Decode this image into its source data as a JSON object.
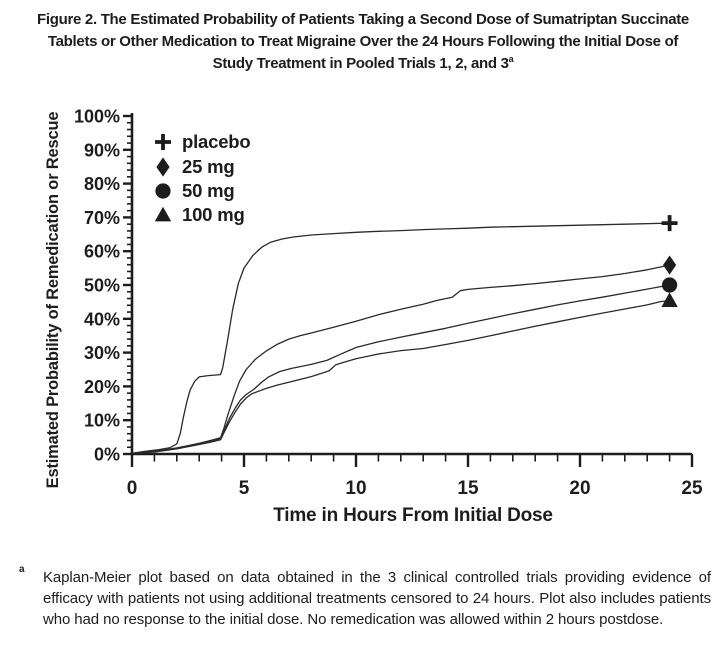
{
  "figure": {
    "title_line1": "Figure 2. The Estimated Probability of Patients Taking a Second Dose of Sumatriptan Succinate",
    "title_line2": "Tablets or Other Medication to Treat Migraine Over the 24 Hours Following the Initial Dose of",
    "title_line3": "Study Treatment in Pooled Trials 1, 2, and 3",
    "title_superscript": "a"
  },
  "footnote": {
    "marker": "a",
    "text": "Kaplan-Meier plot based on data obtained in the 3 clinical controlled trials providing evidence of efficacy with patients not using additional treatments censored to 24 hours. Plot also includes patients who had no response to the initial dose. No remedication was allowed within 2 hours postdose."
  },
  "colors": {
    "ink": "#1d1d1d",
    "background": "#ffffff",
    "curve": "#2a2a2a"
  },
  "chart_data": {
    "type": "line",
    "title": "",
    "xlabel": "Time in Hours From Initial Dose",
    "ylabel": "Estimated Probability of Remedication or Rescue",
    "xlim": [
      0,
      25
    ],
    "ylim": [
      0,
      100
    ],
    "grid": false,
    "legend_position": "upper-left-inside",
    "x_tick_values": [
      0,
      5,
      10,
      15,
      20,
      25
    ],
    "x_tick_labels": [
      "0",
      "5",
      "10",
      "15",
      "20",
      "25"
    ],
    "x_minor_tick_step": 1,
    "y_tick_values": [
      0,
      10,
      20,
      30,
      40,
      50,
      60,
      70,
      80,
      90,
      100
    ],
    "y_tick_labels": [
      "0%",
      "10%",
      "20%",
      "30%",
      "40%",
      "50%",
      "60%",
      "70%",
      "80%",
      "90%",
      "100%"
    ],
    "y_minor_tick_step": 2,
    "series": [
      {
        "id": "placebo",
        "name": "placebo",
        "marker": "plus",
        "end_time_hours": 24,
        "end_value_pct": 68,
        "points": [
          [
            0,
            0.2
          ],
          [
            0.6,
            0.8
          ],
          [
            1.2,
            1.3
          ],
          [
            1.7,
            1.9
          ],
          [
            2.0,
            3
          ],
          [
            2.15,
            6
          ],
          [
            2.3,
            11
          ],
          [
            2.45,
            15.5
          ],
          [
            2.6,
            19
          ],
          [
            2.8,
            21.5
          ],
          [
            3.0,
            22.8
          ],
          [
            3.4,
            23.2
          ],
          [
            3.95,
            23.5
          ],
          [
            4.05,
            25.5
          ],
          [
            4.25,
            33
          ],
          [
            4.5,
            43
          ],
          [
            4.75,
            50.5
          ],
          [
            5.0,
            55
          ],
          [
            5.4,
            58.8
          ],
          [
            5.8,
            61.2
          ],
          [
            6.2,
            62.7
          ],
          [
            6.7,
            63.6
          ],
          [
            7.2,
            64.2
          ],
          [
            8,
            64.8
          ],
          [
            9,
            65.2
          ],
          [
            10,
            65.6
          ],
          [
            11,
            65.9
          ],
          [
            12,
            66.1
          ],
          [
            13,
            66.4
          ],
          [
            14,
            66.6
          ],
          [
            15,
            66.8
          ],
          [
            16,
            67.1
          ],
          [
            18,
            67.4
          ],
          [
            20,
            67.7
          ],
          [
            22,
            68.0
          ],
          [
            24,
            68.3
          ]
        ]
      },
      {
        "id": "25mg",
        "name": "25 mg",
        "marker": "diamond",
        "end_time_hours": 24,
        "end_value_pct": 56,
        "points": [
          [
            0,
            0.2
          ],
          [
            1,
            0.8
          ],
          [
            2,
            1.8
          ],
          [
            2.5,
            2.5
          ],
          [
            3,
            3.2
          ],
          [
            3.5,
            4.0
          ],
          [
            3.95,
            4.8
          ],
          [
            4.1,
            7.5
          ],
          [
            4.3,
            12
          ],
          [
            4.55,
            17
          ],
          [
            4.8,
            21.5
          ],
          [
            5.1,
            25
          ],
          [
            5.5,
            28
          ],
          [
            6,
            30.5
          ],
          [
            6.5,
            32.5
          ],
          [
            7,
            34
          ],
          [
            7.5,
            35
          ],
          [
            8,
            35.8
          ],
          [
            9,
            37.5
          ],
          [
            10,
            39.3
          ],
          [
            11,
            41.2
          ],
          [
            12,
            42.8
          ],
          [
            13,
            44.3
          ],
          [
            13.6,
            45.4
          ],
          [
            14.3,
            46.4
          ],
          [
            14.65,
            48.3
          ],
          [
            15,
            48.7
          ],
          [
            16,
            49.3
          ],
          [
            17,
            49.8
          ],
          [
            18,
            50.4
          ],
          [
            19,
            51.1
          ],
          [
            20,
            51.8
          ],
          [
            21,
            52.5
          ],
          [
            22,
            53.4
          ],
          [
            23,
            54.5
          ],
          [
            24,
            55.9
          ]
        ]
      },
      {
        "id": "50mg",
        "name": "50 mg",
        "marker": "circle",
        "end_time_hours": 24,
        "end_value_pct": 50,
        "points": [
          [
            0,
            0.2
          ],
          [
            1,
            0.7
          ],
          [
            2,
            1.6
          ],
          [
            3,
            3.0
          ],
          [
            3.5,
            3.7
          ],
          [
            3.95,
            4.5
          ],
          [
            4.1,
            6.8
          ],
          [
            4.35,
            10.5
          ],
          [
            4.6,
            13.5
          ],
          [
            4.85,
            16
          ],
          [
            5.1,
            17.6
          ],
          [
            5.45,
            19.2
          ],
          [
            5.8,
            21.3
          ],
          [
            6.1,
            22.8
          ],
          [
            6.6,
            24.4
          ],
          [
            7.1,
            25.3
          ],
          [
            8,
            26.5
          ],
          [
            8.7,
            27.7
          ],
          [
            9.3,
            29.5
          ],
          [
            10,
            31.5
          ],
          [
            11,
            33.2
          ],
          [
            12,
            34.6
          ],
          [
            13,
            35.9
          ],
          [
            14,
            37.2
          ],
          [
            15,
            38.7
          ],
          [
            16,
            40.1
          ],
          [
            17,
            41.5
          ],
          [
            18,
            42.8
          ],
          [
            19,
            44.1
          ],
          [
            20,
            45.3
          ],
          [
            21,
            46.4
          ],
          [
            22,
            47.6
          ],
          [
            23,
            48.8
          ],
          [
            24,
            50
          ]
        ]
      },
      {
        "id": "100mg",
        "name": "100 mg",
        "marker": "triangle",
        "end_time_hours": 24,
        "end_value_pct": 45,
        "points": [
          [
            0,
            0.2
          ],
          [
            1,
            0.6
          ],
          [
            2,
            1.5
          ],
          [
            3,
            2.8
          ],
          [
            3.5,
            3.5
          ],
          [
            3.95,
            4.2
          ],
          [
            4.1,
            6.2
          ],
          [
            4.35,
            9.5
          ],
          [
            4.6,
            12.3
          ],
          [
            4.85,
            14.8
          ],
          [
            5.1,
            16.6
          ],
          [
            5.35,
            17.8
          ],
          [
            5.7,
            18.7
          ],
          [
            6,
            19.4
          ],
          [
            6.5,
            20.4
          ],
          [
            7,
            21.2
          ],
          [
            8,
            22.9
          ],
          [
            8.8,
            24.6
          ],
          [
            9.1,
            26.4
          ],
          [
            9.6,
            27.4
          ],
          [
            10,
            28.2
          ],
          [
            11,
            29.6
          ],
          [
            12,
            30.6
          ],
          [
            13,
            31.2
          ],
          [
            14,
            32.4
          ],
          [
            15,
            33.6
          ],
          [
            16,
            35.0
          ],
          [
            17,
            36.4
          ],
          [
            18,
            37.8
          ],
          [
            19,
            39.1
          ],
          [
            20,
            40.4
          ],
          [
            21,
            41.7
          ],
          [
            22,
            42.9
          ],
          [
            23,
            44.1
          ],
          [
            23.6,
            45.1
          ],
          [
            24,
            45.4
          ]
        ]
      }
    ]
  }
}
